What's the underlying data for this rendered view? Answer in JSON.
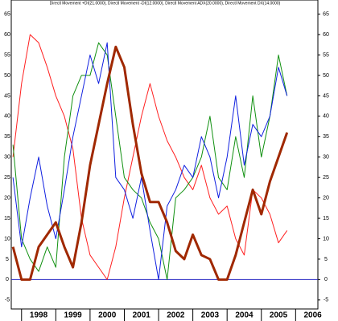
{
  "chart_data": {
    "type": "line",
    "title": "Directl Movement +DI(21.0000), Directl Movement -DI(12.0000), Directl Movement ADX(20.0000), Directl Movement DX(14.0000)",
    "x": [
      1997.75,
      1998,
      1998.25,
      1998.5,
      1998.75,
      1999,
      1999.25,
      1999.5,
      1999.75,
      2000,
      2000.25,
      2000.5,
      2000.75,
      2001,
      2001.25,
      2001.5,
      2001.75,
      2002,
      2002.25,
      2002.5,
      2002.75,
      2003,
      2003.25,
      2003.5,
      2003.75,
      2004,
      2004.25,
      2004.5,
      2004.75,
      2005,
      2005.25,
      2005.5,
      2005.75
    ],
    "series": [
      {
        "color": "#ff2020",
        "width": 1,
        "values": [
          30,
          48,
          60,
          58,
          52,
          45,
          40,
          32,
          15,
          6,
          3,
          0,
          8,
          20,
          30,
          40,
          48,
          40,
          34,
          30,
          25,
          22,
          28,
          20,
          16,
          18,
          10,
          6,
          22,
          20,
          16,
          9,
          12
        ]
      },
      {
        "color": "#109010",
        "width": 1,
        "values": [
          33,
          10,
          5,
          2,
          8,
          3,
          30,
          45,
          50,
          50,
          58,
          55,
          40,
          25,
          22,
          20,
          14,
          10,
          0,
          20,
          22,
          25,
          30,
          40,
          25,
          22,
          35,
          25,
          45,
          30,
          40,
          55,
          45
        ]
      },
      {
        "color": "#1020e0",
        "width": 1,
        "values": [
          25,
          8,
          20,
          30,
          18,
          10,
          22,
          35,
          45,
          55,
          48,
          58,
          25,
          22,
          15,
          25,
          12,
          0,
          18,
          22,
          28,
          25,
          35,
          30,
          20,
          30,
          45,
          28,
          38,
          35,
          40,
          52,
          45
        ]
      },
      {
        "color": "#a02800",
        "width": 3,
        "values": [
          8,
          0,
          0,
          8,
          11,
          14,
          8,
          3,
          14,
          28,
          38,
          48,
          57,
          52,
          38,
          26,
          19,
          19,
          14,
          7,
          5,
          11,
          6,
          5,
          0,
          0,
          6,
          14,
          22,
          16,
          24,
          30,
          36
        ]
      }
    ],
    "hline": 0,
    "hline_color": "#2020c0",
    "xlim": [
      1997.7,
      2006.65
    ],
    "xticks": [
      1998,
      1999,
      2000,
      2001,
      2002,
      2003,
      2004,
      2005,
      2006
    ],
    "ylim": [
      -7.2,
      66.9
    ],
    "yticks": [
      -5,
      0,
      5,
      10,
      15,
      20,
      25,
      30,
      35,
      40,
      45,
      50,
      55,
      60,
      65
    ]
  }
}
